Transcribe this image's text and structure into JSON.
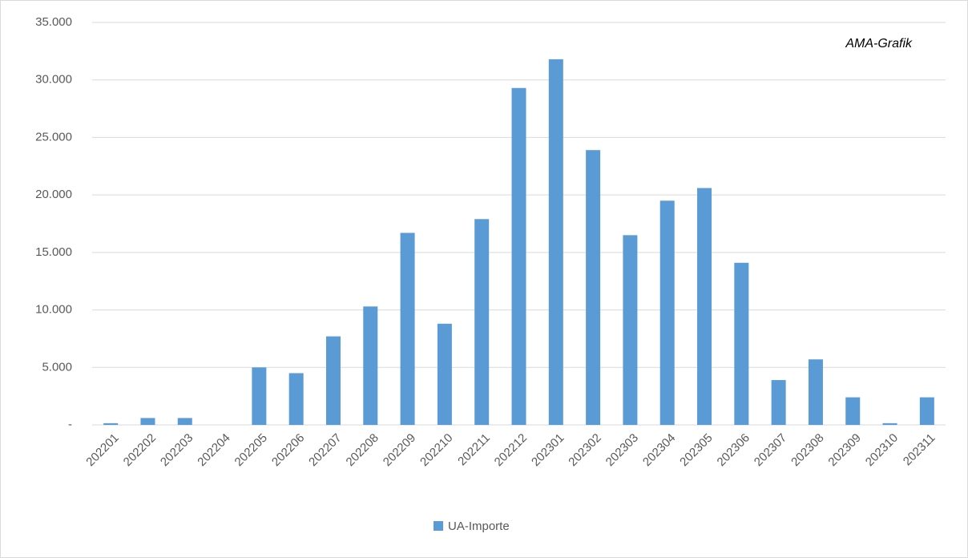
{
  "chart_data": {
    "type": "bar",
    "annotation": "AMA-Grafik",
    "categories": [
      "202201",
      "202202",
      "202203",
      "202204",
      "202205",
      "202206",
      "202207",
      "202208",
      "202209",
      "202210",
      "202211",
      "202212",
      "202301",
      "202302",
      "202303",
      "202304",
      "202305",
      "202306",
      "202307",
      "202308",
      "202309",
      "202310",
      "202311"
    ],
    "series": [
      {
        "name": "UA-Importe",
        "color": "#5b9bd5",
        "values": [
          150,
          600,
          600,
          0,
          5000,
          4500,
          7700,
          10300,
          16700,
          8800,
          17900,
          29300,
          31800,
          23900,
          16500,
          19500,
          20600,
          14100,
          3900,
          5700,
          2400,
          150,
          2400
        ]
      }
    ],
    "ylim": [
      0,
      35000
    ],
    "yticks": [
      {
        "value": 0,
        "label": "-"
      },
      {
        "value": 5000,
        "label": "5.000"
      },
      {
        "value": 10000,
        "label": "10.000"
      },
      {
        "value": 15000,
        "label": "15.000"
      },
      {
        "value": 20000,
        "label": "20.000"
      },
      {
        "value": 25000,
        "label": "25.000"
      },
      {
        "value": 30000,
        "label": "30.000"
      },
      {
        "value": 35000,
        "label": "35.000"
      }
    ],
    "grid": true,
    "legend": "bottom"
  }
}
